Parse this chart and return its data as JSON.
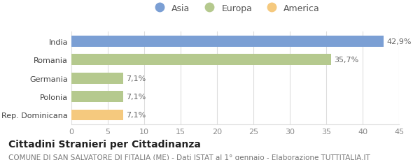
{
  "categories": [
    "Rep. Dominicana",
    "Polonia",
    "Germania",
    "Romania",
    "India"
  ],
  "values": [
    7.1,
    7.1,
    7.1,
    35.7,
    42.9
  ],
  "labels": [
    "7,1%",
    "7,1%",
    "7,1%",
    "35,7%",
    "42,9%"
  ],
  "bar_colors": [
    "#f5c97e",
    "#b5c98e",
    "#b5c98e",
    "#b5c98e",
    "#7b9fd4"
  ],
  "legend_items": [
    "Asia",
    "Europa",
    "America"
  ],
  "legend_colors": [
    "#7b9fd4",
    "#b5c98e",
    "#f5c97e"
  ],
  "xlim": [
    0,
    45
  ],
  "xticks": [
    0,
    5,
    10,
    15,
    20,
    25,
    30,
    35,
    40,
    45
  ],
  "title": "Cittadini Stranieri per Cittadinanza",
  "subtitle": "COMUNE DI SAN SALVATORE DI FITALIA (ME) - Dati ISTAT al 1° gennaio - Elaborazione TUTTITALIA.IT",
  "title_fontsize": 10,
  "subtitle_fontsize": 7.5,
  "label_fontsize": 8,
  "tick_fontsize": 8,
  "ytick_fontsize": 8,
  "legend_fontsize": 9,
  "background_color": "#ffffff",
  "grid_color": "#dddddd"
}
